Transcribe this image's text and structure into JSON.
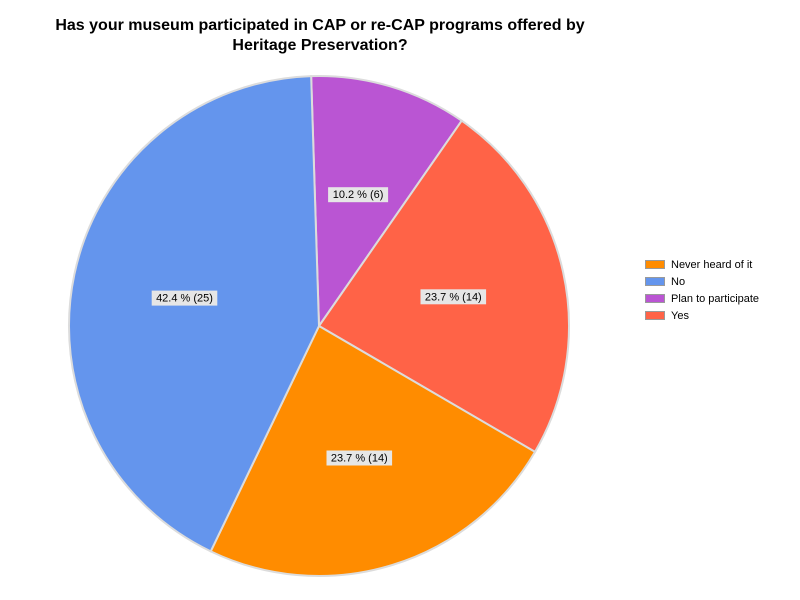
{
  "chart_data": {
    "type": "pie",
    "title": "Has your museum participated in CAP or re-CAP programs offered by Heritage Preservation?",
    "legend_position": "right",
    "slices": [
      {
        "label": "Plan to participate",
        "count": 6,
        "percent": 10.2,
        "value_label": "10.2 % (6)",
        "color": "#BA55D3"
      },
      {
        "label": "Yes",
        "count": 14,
        "percent": 23.7,
        "value_label": "23.7 % (14)",
        "color": "#FF6347"
      },
      {
        "label": "Never heard of it",
        "count": 14,
        "percent": 23.7,
        "value_label": "23.7 % (14)",
        "color": "#FF8C00"
      },
      {
        "label": "No",
        "count": 25,
        "percent": 42.4,
        "value_label": "42.4 % (25)",
        "color": "#6495ED"
      }
    ],
    "legend": [
      {
        "label": "Never heard of it",
        "color": "#FF8C00"
      },
      {
        "label": "No",
        "color": "#6495ED"
      },
      {
        "label": "Plan to participate",
        "color": "#BA55D3"
      },
      {
        "label": "Yes",
        "color": "#FF6347"
      }
    ]
  }
}
